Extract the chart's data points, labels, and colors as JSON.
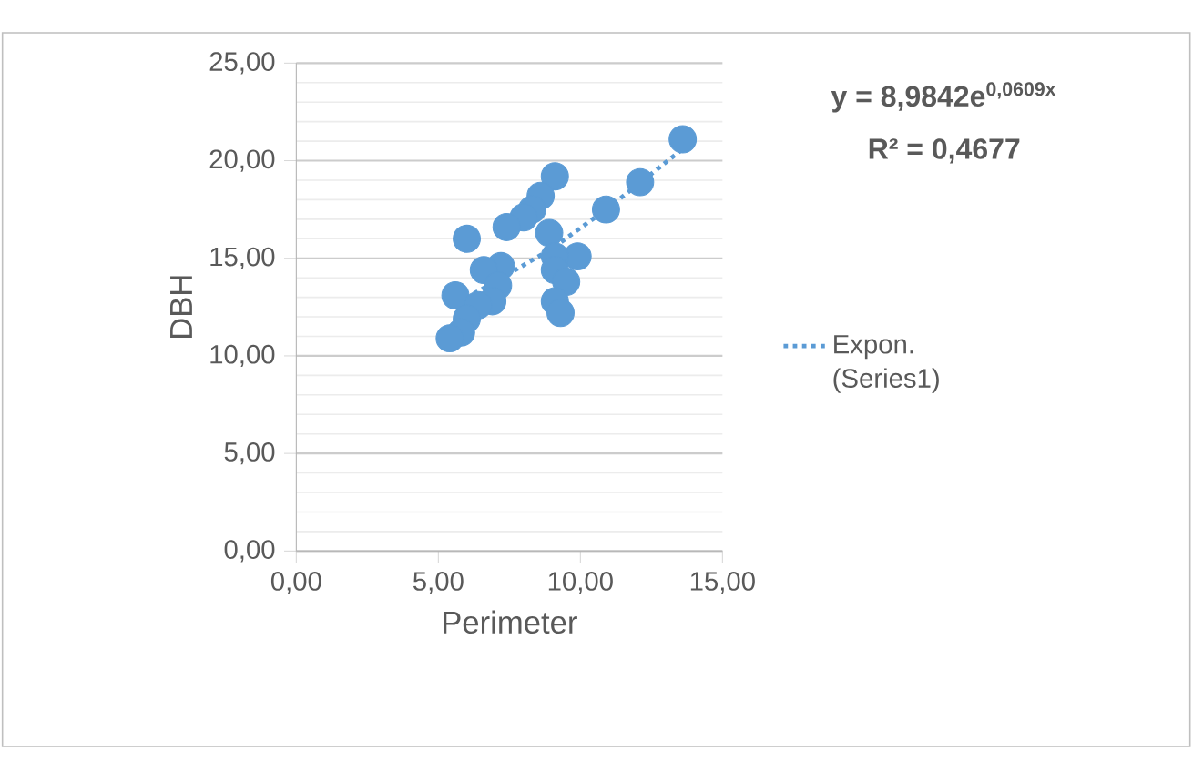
{
  "chart_data": {
    "type": "scatter",
    "xlabel": "Perimeter",
    "ylabel": "DBH",
    "annotations": [
      "y = 8,9842e$^{0,0609x}$",
      "R² = 0,4677"
    ],
    "xlim": [
      0,
      15
    ],
    "ylim": [
      0,
      25
    ],
    "xticks": [
      {
        "value": 0,
        "label": "0,00"
      },
      {
        "value": 5,
        "label": "5,00"
      },
      {
        "value": 10,
        "label": "10,00"
      },
      {
        "value": 15,
        "label": "15,00"
      }
    ],
    "yticks": [
      {
        "value": 0,
        "label": "0,00"
      },
      {
        "value": 5,
        "label": "5,00"
      },
      {
        "value": 10,
        "label": "10,00"
      },
      {
        "value": 15,
        "label": "15,00"
      },
      {
        "value": 20,
        "label": "20,00"
      },
      {
        "value": 25,
        "label": "25,00"
      }
    ],
    "grid": "y",
    "legend": "right",
    "series": [
      {
        "color": "#5b9bd5",
        "marker": "circle",
        "x": [
          13.6,
          12.1,
          10.9,
          9.1,
          8.6,
          8.3,
          8.0,
          7.4,
          8.9,
          6.0,
          9.9,
          9.1,
          9.1,
          9.5,
          7.2,
          6.6,
          7.1,
          6.9,
          5.6,
          9.1,
          9.3,
          6.4,
          6.0,
          5.8,
          5.4
        ],
        "values": [
          21.1,
          18.9,
          17.5,
          19.2,
          18.2,
          17.5,
          17.1,
          16.6,
          16.3,
          16.0,
          15.1,
          15.1,
          14.4,
          13.8,
          14.6,
          14.4,
          13.6,
          12.8,
          13.1,
          12.8,
          12.2,
          12.6,
          11.9,
          11.2,
          10.9
        ]
      },
      {
        "type": "line",
        "name": "Expon. (Series1)",
        "color": "#5b9bd5",
        "marker": "none",
        "line_style": "dotted",
        "x": [
          5.4,
          7,
          9,
          11,
          13.6
        ],
        "values": [
          12.5,
          13.8,
          15.5,
          17.6,
          20.6
        ]
      }
    ]
  }
}
